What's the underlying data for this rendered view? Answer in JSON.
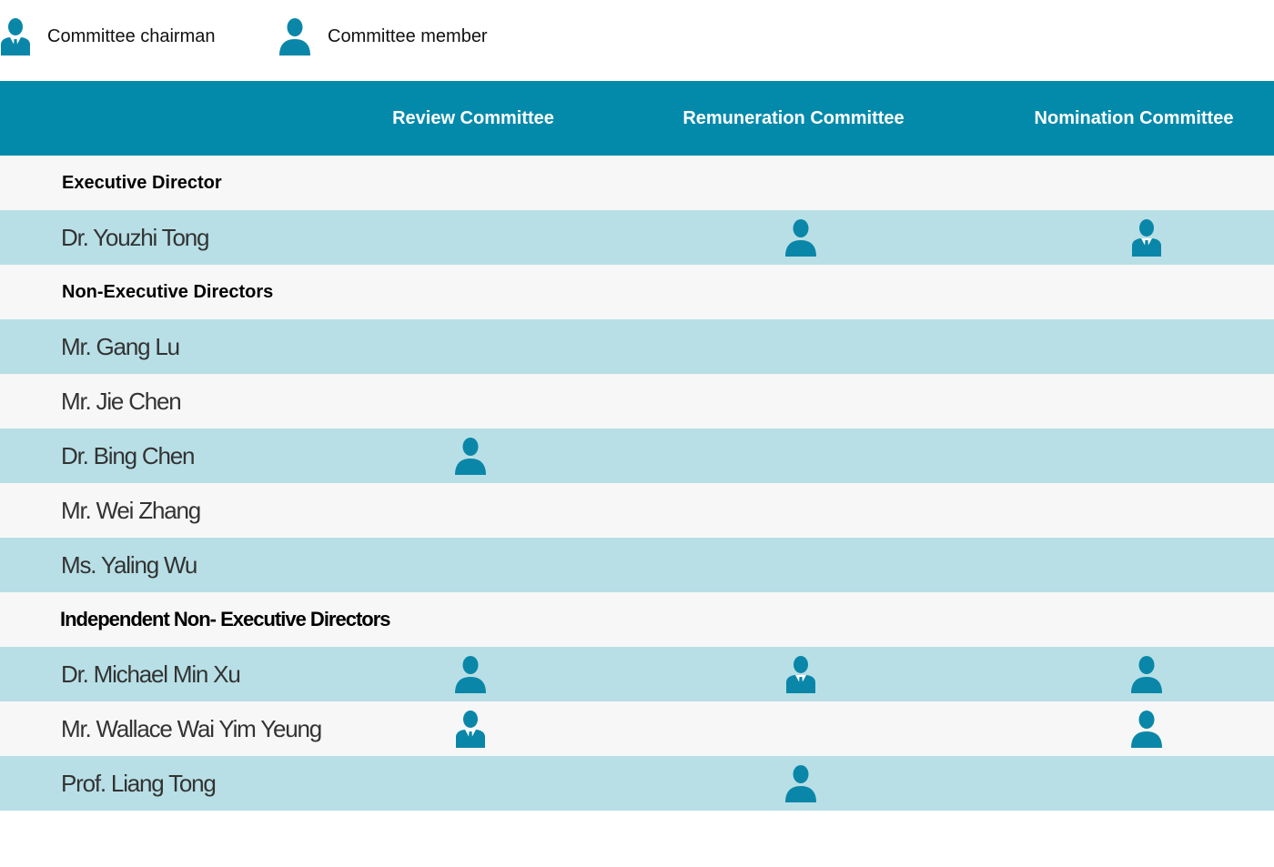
{
  "legend": {
    "chairman_label": "Committee chairman",
    "member_label": "Committee member"
  },
  "header": {
    "columns": [
      "Review Committee",
      "Remuneration Committee",
      "Nomination Committee"
    ]
  },
  "colors": {
    "header_bg": "#038aab",
    "row_alt": "#b8dfe6",
    "row_plain": "#f7f7f7",
    "icon": "#0a87a8"
  },
  "table": {
    "sections": [
      {
        "title": "Executive Director",
        "members": [
          {
            "name": "Dr. Youzhi Tong",
            "review": "",
            "remuneration": "member",
            "nomination": "chairman"
          }
        ]
      },
      {
        "title": "Non-Executive Directors",
        "members": [
          {
            "name": "Mr. Gang Lu",
            "review": "",
            "remuneration": "",
            "nomination": ""
          },
          {
            "name": "Mr. Jie Chen",
            "review": "",
            "remuneration": "",
            "nomination": ""
          },
          {
            "name": "Dr. Bing Chen",
            "review": "member",
            "remuneration": "",
            "nomination": ""
          },
          {
            "name": "Mr. Wei Zhang",
            "review": "",
            "remuneration": "",
            "nomination": ""
          },
          {
            "name": "Ms. Yaling Wu",
            "review": "",
            "remuneration": "",
            "nomination": ""
          }
        ]
      },
      {
        "title": "Independent Non- Executive Directors",
        "members": [
          {
            "name": "Dr. Michael Min Xu",
            "review": "member",
            "remuneration": "chairman",
            "nomination": "member"
          },
          {
            "name": "Mr. Wallace Wai Yim Yeung",
            "review": "chairman",
            "remuneration": "",
            "nomination": "member"
          },
          {
            "name": "Prof. Liang Tong",
            "review": "",
            "remuneration": "member",
            "nomination": ""
          }
        ]
      }
    ]
  }
}
